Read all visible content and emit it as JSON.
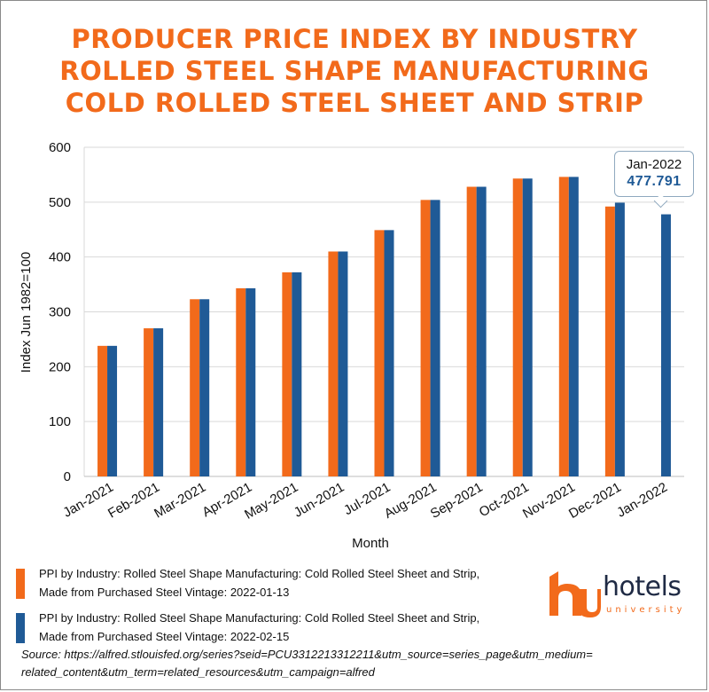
{
  "title_lines": [
    "PRODUCER PRICE INDEX BY INDUSTRY",
    "ROLLED STEEL SHAPE MANUFACTURING",
    "COLD ROLLED STEEL SHEET AND STRIP"
  ],
  "colors": {
    "orange": "#f26a1b",
    "blue": "#1f5a96",
    "title": "#f26a1b"
  },
  "chart_data": {
    "type": "bar",
    "categories": [
      "Jan-2021",
      "Feb-2021",
      "Mar-2021",
      "Apr-2021",
      "May-2021",
      "Jun-2021",
      "Jul-2021",
      "Aug-2021",
      "Sep-2021",
      "Oct-2021",
      "Nov-2021",
      "Dec-2021",
      "Jan-2022"
    ],
    "series": [
      {
        "name": "PPI by Industry: Rolled Steel Shape Manufacturing: Cold Rolled Steel Sheet and Strip, Made from Purchased Steel Vintage: 2022-01-13",
        "color": "#f26a1b",
        "values": [
          238,
          270,
          323,
          343,
          372,
          410,
          449,
          504,
          528,
          543,
          546,
          492,
          null
        ]
      },
      {
        "name": "PPI by Industry: Rolled Steel Shape Manufacturing: Cold Rolled Steel Sheet and Strip, Made from Purchased Steel Vintage: 2022-02-15",
        "color": "#1f5a96",
        "values": [
          238,
          270,
          323,
          343,
          372,
          410,
          449,
          504,
          528,
          543,
          546,
          499,
          477.791
        ]
      }
    ],
    "xlabel": "Month",
    "ylabel": "Index Jun 1982=100",
    "ylim": [
      0,
      600
    ],
    "yticks": [
      0,
      100,
      200,
      300,
      400,
      500,
      600
    ],
    "grid": true,
    "legend_position": "bottom-left",
    "tooltip": {
      "date": "Jan-2022",
      "value": "477.791"
    }
  },
  "legend": [
    {
      "line1": "PPI by Industry: Rolled Steel Shape Manufacturing: Cold Rolled Steel Sheet and Strip,",
      "line2": "Made from Purchased Steel Vintage: 2022-01-13",
      "color": "#f26a1b"
    },
    {
      "line1": "PPI by Industry: Rolled Steel Shape Manufacturing: Cold Rolled Steel Sheet and Strip,",
      "line2": "Made from Purchased Steel Vintage: 2022-02-15",
      "color": "#1f5a96"
    }
  ],
  "logo": {
    "word": "hotels",
    "sub": "university",
    "icon": "hu-logo-icon"
  },
  "source": {
    "line1": "Source: https://alfred.stlouisfed.org/series?seid=PCU3312213312211&utm_source=series_page&utm_medium=",
    "line2": "related_content&utm_term=related_resources&utm_campaign=alfred"
  }
}
